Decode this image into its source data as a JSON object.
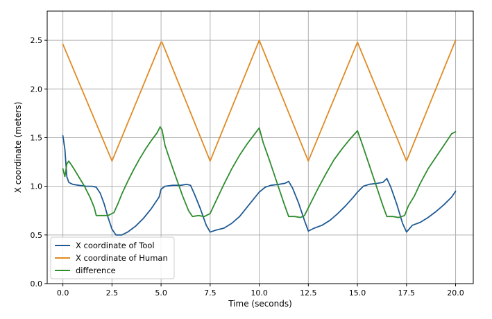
{
  "chart_data": {
    "type": "line",
    "title": "",
    "xlabel": "Time (seconds)",
    "ylabel": "X coordinate (meters)",
    "xlim": [
      -0.8,
      20.9
    ],
    "ylim": [
      0.0,
      2.8
    ],
    "x_ticks": [
      0.0,
      2.5,
      5.0,
      7.5,
      10.0,
      12.5,
      15.0,
      17.5,
      20.0
    ],
    "y_ticks": [
      0.0,
      0.5,
      1.0,
      1.5,
      2.0,
      2.5
    ],
    "x_tick_labels": [
      "0.0",
      "2.5",
      "5.0",
      "7.5",
      "10.0",
      "12.5",
      "15.0",
      "17.5",
      "20.0"
    ],
    "y_tick_labels": [
      "0.0",
      "0.5",
      "1.0",
      "1.5",
      "2.0",
      "2.5"
    ],
    "grid": true,
    "legend_position": "lower-left",
    "series": [
      {
        "name": "X coordinate of Tool",
        "color": "#1f5a93",
        "points": [
          [
            0.0,
            1.52
          ],
          [
            0.1,
            1.38
          ],
          [
            0.2,
            1.1
          ],
          [
            0.3,
            1.04
          ],
          [
            0.5,
            1.02
          ],
          [
            0.8,
            1.01
          ],
          [
            1.2,
            1.0
          ],
          [
            1.5,
            1.0
          ],
          [
            1.7,
            0.99
          ],
          [
            1.9,
            0.93
          ],
          [
            2.1,
            0.82
          ],
          [
            2.3,
            0.68
          ],
          [
            2.5,
            0.56
          ],
          [
            2.7,
            0.5
          ],
          [
            3.0,
            0.5
          ],
          [
            3.3,
            0.53
          ],
          [
            3.7,
            0.59
          ],
          [
            4.1,
            0.67
          ],
          [
            4.5,
            0.77
          ],
          [
            4.9,
            0.89
          ],
          [
            5.0,
            0.97
          ],
          [
            5.2,
            1.0
          ],
          [
            5.6,
            1.01
          ],
          [
            6.0,
            1.01
          ],
          [
            6.3,
            1.02
          ],
          [
            6.5,
            1.01
          ],
          [
            6.7,
            0.92
          ],
          [
            7.0,
            0.77
          ],
          [
            7.3,
            0.6
          ],
          [
            7.5,
            0.53
          ],
          [
            7.8,
            0.55
          ],
          [
            8.2,
            0.57
          ],
          [
            8.6,
            0.62
          ],
          [
            9.0,
            0.69
          ],
          [
            9.4,
            0.79
          ],
          [
            9.8,
            0.89
          ],
          [
            10.0,
            0.94
          ],
          [
            10.3,
            0.99
          ],
          [
            10.6,
            1.01
          ],
          [
            11.0,
            1.02
          ],
          [
            11.3,
            1.03
          ],
          [
            11.5,
            1.05
          ],
          [
            11.7,
            0.98
          ],
          [
            12.0,
            0.83
          ],
          [
            12.3,
            0.65
          ],
          [
            12.5,
            0.54
          ],
          [
            12.8,
            0.57
          ],
          [
            13.2,
            0.6
          ],
          [
            13.6,
            0.65
          ],
          [
            14.0,
            0.72
          ],
          [
            14.4,
            0.8
          ],
          [
            14.8,
            0.89
          ],
          [
            15.0,
            0.94
          ],
          [
            15.3,
            1.0
          ],
          [
            15.6,
            1.02
          ],
          [
            16.0,
            1.03
          ],
          [
            16.3,
            1.04
          ],
          [
            16.5,
            1.08
          ],
          [
            16.7,
            0.99
          ],
          [
            17.0,
            0.82
          ],
          [
            17.3,
            0.62
          ],
          [
            17.5,
            0.53
          ],
          [
            17.8,
            0.6
          ],
          [
            18.2,
            0.63
          ],
          [
            18.6,
            0.68
          ],
          [
            19.0,
            0.74
          ],
          [
            19.4,
            0.81
          ],
          [
            19.8,
            0.89
          ],
          [
            20.0,
            0.95
          ]
        ]
      },
      {
        "name": "X coordinate of Human",
        "color": "#e08a22",
        "points": [
          [
            0.0,
            2.46
          ],
          [
            2.5,
            1.26
          ],
          [
            5.0,
            2.48
          ],
          [
            5.05,
            2.48
          ],
          [
            7.5,
            1.26
          ],
          [
            10.0,
            2.5
          ],
          [
            12.5,
            1.26
          ],
          [
            15.0,
            2.48
          ],
          [
            17.5,
            1.26
          ],
          [
            20.0,
            2.5
          ]
        ]
      },
      {
        "name": "difference",
        "color": "#2e8b2e",
        "points": [
          [
            0.0,
            1.18
          ],
          [
            0.1,
            1.1
          ],
          [
            0.2,
            1.23
          ],
          [
            0.3,
            1.26
          ],
          [
            0.5,
            1.2
          ],
          [
            0.8,
            1.1
          ],
          [
            1.1,
            1.0
          ],
          [
            1.4,
            0.88
          ],
          [
            1.6,
            0.78
          ],
          [
            1.7,
            0.7
          ],
          [
            2.0,
            0.7
          ],
          [
            2.3,
            0.7
          ],
          [
            2.6,
            0.73
          ],
          [
            2.8,
            0.82
          ],
          [
            3.0,
            0.92
          ],
          [
            3.3,
            1.05
          ],
          [
            3.6,
            1.17
          ],
          [
            3.9,
            1.28
          ],
          [
            4.2,
            1.38
          ],
          [
            4.5,
            1.47
          ],
          [
            4.8,
            1.55
          ],
          [
            4.95,
            1.61
          ],
          [
            5.05,
            1.58
          ],
          [
            5.2,
            1.42
          ],
          [
            5.5,
            1.24
          ],
          [
            5.8,
            1.07
          ],
          [
            6.1,
            0.9
          ],
          [
            6.4,
            0.75
          ],
          [
            6.6,
            0.69
          ],
          [
            6.9,
            0.7
          ],
          [
            7.2,
            0.69
          ],
          [
            7.5,
            0.72
          ],
          [
            7.8,
            0.85
          ],
          [
            8.2,
            1.02
          ],
          [
            8.6,
            1.18
          ],
          [
            9.0,
            1.32
          ],
          [
            9.4,
            1.44
          ],
          [
            9.7,
            1.52
          ],
          [
            10.0,
            1.6
          ],
          [
            10.2,
            1.45
          ],
          [
            10.5,
            1.28
          ],
          [
            10.8,
            1.1
          ],
          [
            11.1,
            0.92
          ],
          [
            11.3,
            0.8
          ],
          [
            11.5,
            0.69
          ],
          [
            11.8,
            0.69
          ],
          [
            12.1,
            0.68
          ],
          [
            12.3,
            0.7
          ],
          [
            12.6,
            0.82
          ],
          [
            13.0,
            0.98
          ],
          [
            13.4,
            1.13
          ],
          [
            13.8,
            1.27
          ],
          [
            14.2,
            1.38
          ],
          [
            14.6,
            1.48
          ],
          [
            15.0,
            1.57
          ],
          [
            15.2,
            1.46
          ],
          [
            15.5,
            1.28
          ],
          [
            15.8,
            1.1
          ],
          [
            16.1,
            0.92
          ],
          [
            16.3,
            0.8
          ],
          [
            16.5,
            0.69
          ],
          [
            16.8,
            0.69
          ],
          [
            17.1,
            0.68
          ],
          [
            17.4,
            0.7
          ],
          [
            17.6,
            0.8
          ],
          [
            17.9,
            0.9
          ],
          [
            18.2,
            1.03
          ],
          [
            18.6,
            1.18
          ],
          [
            19.0,
            1.3
          ],
          [
            19.4,
            1.42
          ],
          [
            19.8,
            1.54
          ],
          [
            20.0,
            1.56
          ]
        ]
      }
    ]
  }
}
